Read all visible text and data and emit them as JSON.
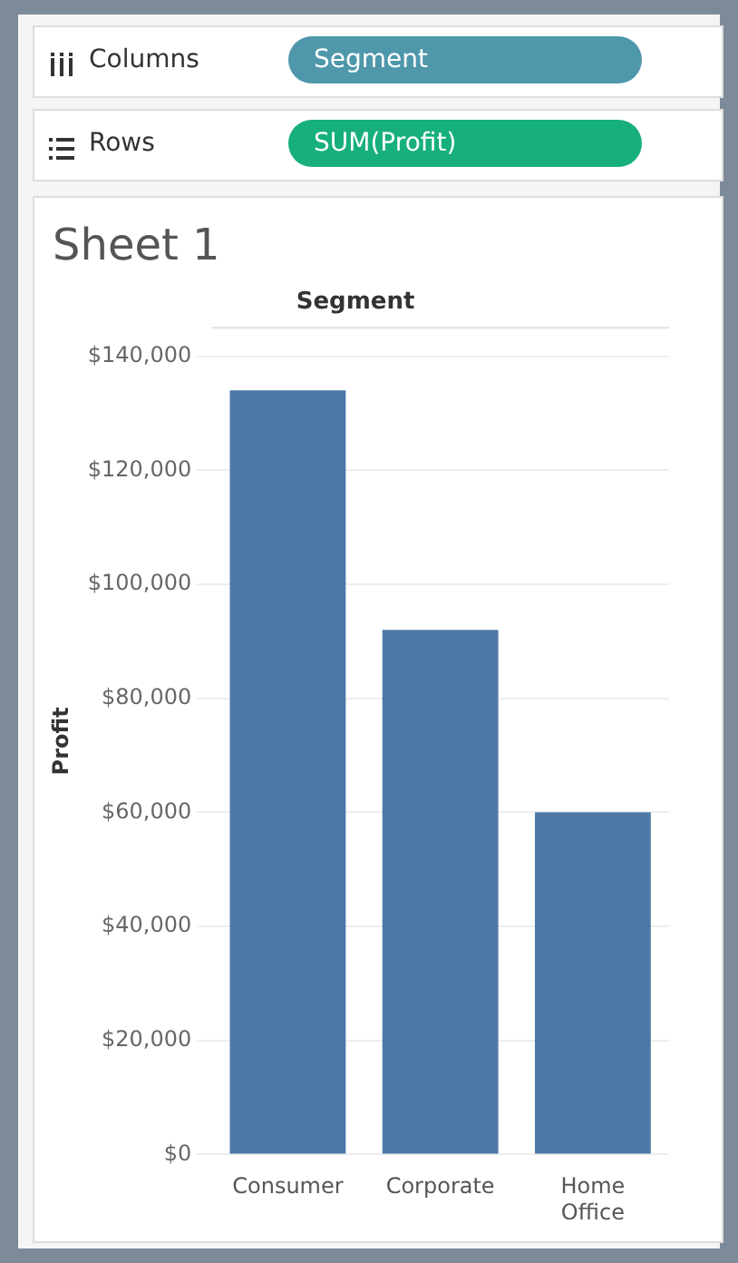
{
  "chart_data": {
    "type": "bar",
    "title": "Sheet 1",
    "xlabel": "Segment",
    "ylabel": "Profit",
    "annotations": [
      "Columns",
      "Segment",
      "Rows",
      "SUM(Profit)"
    ],
    "categories": [
      "Consumer",
      "Corporate",
      "Home Office"
    ],
    "values": [
      134000,
      92000,
      60000
    ],
    "color": "#4e79a7",
    "ylim": [
      0,
      145000
    ],
    "yticks": [
      {
        "value": 0,
        "label": "$0"
      },
      {
        "value": 20000,
        "label": "$20,000"
      },
      {
        "value": 40000,
        "label": "$40,000"
      },
      {
        "value": 60000,
        "label": "$60,000"
      },
      {
        "value": 80000,
        "label": "$80,000"
      },
      {
        "value": 100000,
        "label": "$100,000"
      },
      {
        "value": 120000,
        "label": "$120,000"
      },
      {
        "value": 140000,
        "label": "$140,000"
      }
    ],
    "grid": "y"
  }
}
